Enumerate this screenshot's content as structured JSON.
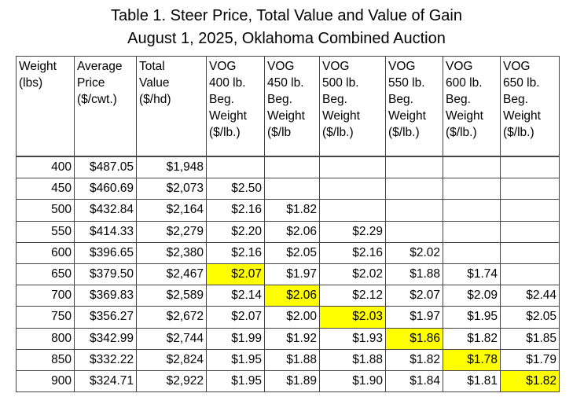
{
  "title": {
    "line1": "Table 1. Steer Price, Total Value and Value of Gain",
    "line2": "August 1, 2025, Oklahoma Combined Auction"
  },
  "headers": [
    [
      "Weight",
      "(lbs)"
    ],
    [
      "Average",
      "Price",
      "($/cwt.)"
    ],
    [
      "Total",
      "Value",
      "($/hd)"
    ],
    [
      "VOG",
      "400 lb.",
      "Beg.",
      "Weight",
      "($/lb.)"
    ],
    [
      "VOG",
      "450 lb.",
      "Beg.",
      "Weight",
      "($/lb"
    ],
    [
      "VOG",
      "500 lb.",
      "Beg.",
      "Weight",
      "($/lb.)"
    ],
    [
      "VOG",
      "550 lb.",
      "Beg.",
      "Weight",
      "($/lb.)"
    ],
    [
      "VOG",
      "600 lb.",
      "Beg.",
      "Weight",
      "($/lb.)"
    ],
    [
      "VOG",
      "650 lb.",
      "Beg.",
      "Weight",
      "($/lb.)"
    ]
  ],
  "highlight_color": "#ffff00",
  "rows": [
    {
      "weight": "400",
      "price": "$487.05",
      "total": "$1,948",
      "vog": [
        "",
        "",
        "",
        "",
        "",
        ""
      ],
      "hl": -1
    },
    {
      "weight": "450",
      "price": "$460.69",
      "total": "$2,073",
      "vog": [
        "$2.50",
        "",
        "",
        "",
        "",
        ""
      ],
      "hl": -1
    },
    {
      "weight": "500",
      "price": "$432.84",
      "total": "$2,164",
      "vog": [
        "$2.16",
        "$1.82",
        "",
        "",
        "",
        ""
      ],
      "hl": -1
    },
    {
      "weight": "550",
      "price": "$414.33",
      "total": "$2,279",
      "vog": [
        "$2.20",
        "$2.06",
        "$2.29",
        "",
        "",
        ""
      ],
      "hl": -1
    },
    {
      "weight": "600",
      "price": "$396.65",
      "total": "$2,380",
      "vog": [
        "$2.16",
        "$2.05",
        "$2.16",
        "$2.02",
        "",
        ""
      ],
      "hl": -1
    },
    {
      "weight": "650",
      "price": "$379.50",
      "total": "$2,467",
      "vog": [
        "$2.07",
        "$1.97",
        "$2.02",
        "$1.88",
        "$1.74",
        ""
      ],
      "hl": 0
    },
    {
      "weight": "700",
      "price": "$369.83",
      "total": "$2,589",
      "vog": [
        "$2.14",
        "$2.06",
        "$2.12",
        "$2.07",
        "$2.09",
        "$2.44"
      ],
      "hl": 1
    },
    {
      "weight": "750",
      "price": "$356.27",
      "total": "$2,672",
      "vog": [
        "$2.07",
        "$2.00",
        "$2.03",
        "$1.97",
        "$1.95",
        "$2.05"
      ],
      "hl": 2
    },
    {
      "weight": "800",
      "price": "$342.99",
      "total": "$2,744",
      "vog": [
        "$1.99",
        "$1.92",
        "$1.93",
        "$1.86",
        "$1.82",
        "$1.85"
      ],
      "hl": 3
    },
    {
      "weight": "850",
      "price": "$332.22",
      "total": "$2,824",
      "vog": [
        "$1.95",
        "$1.88",
        "$1.88",
        "$1.82",
        "$1.78",
        "$1.79"
      ],
      "hl": 4
    },
    {
      "weight": "900",
      "price": "$324.71",
      "total": "$2,922",
      "vog": [
        "$1.95",
        "$1.89",
        "$1.90",
        "$1.84",
        "$1.81",
        "$1.82"
      ],
      "hl": 5
    }
  ]
}
